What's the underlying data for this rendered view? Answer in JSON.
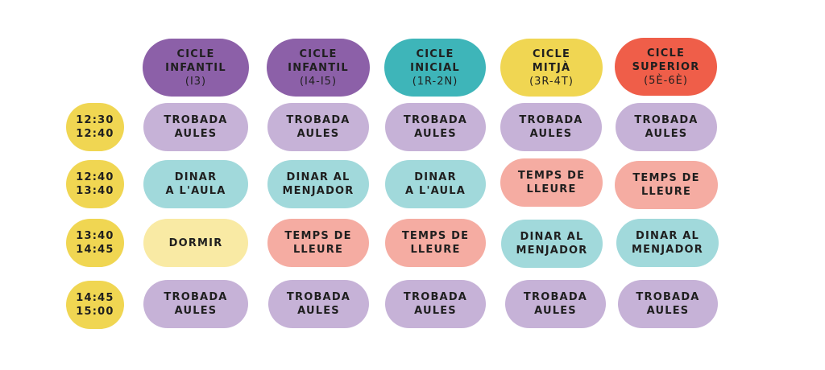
{
  "headers": [
    {
      "line1": "CICLE",
      "line2": "INFANTIL",
      "sub": "(I3)",
      "color": "#8c60a8"
    },
    {
      "line1": "CICLE",
      "line2": "INFANTIL",
      "sub": "(I4-I5)",
      "color": "#8c60a8"
    },
    {
      "line1": "CICLE",
      "line2": "INICIAL",
      "sub": "(1R-2N)",
      "color": "#3eb5b9"
    },
    {
      "line1": "CICLE",
      "line2": "MITJÀ",
      "sub": "(3R-4T)",
      "color": "#f0d652"
    },
    {
      "line1": "CICLE",
      "line2": "SUPERIOR",
      "sub": "(5È-6È)",
      "color": "#ef5e49"
    }
  ],
  "rows": [
    {
      "time": {
        "start": "12:30",
        "end": "12:40"
      },
      "cells": [
        {
          "line1": "TROBADA",
          "line2": "AULES"
        },
        {
          "line1": "TROBADA",
          "line2": "AULES"
        },
        {
          "line1": "TROBADA",
          "line2": "AULES"
        },
        {
          "line1": "TROBADA",
          "line2": "AULES"
        },
        {
          "line1": "TROBADA",
          "line2": "AULES"
        }
      ]
    },
    {
      "time": {
        "start": "12:40",
        "end": "13:40"
      },
      "cells": [
        {
          "line1": "DINAR",
          "line2": "A L'AULA"
        },
        {
          "line1": "DINAR AL",
          "line2": "MENJADOR"
        },
        {
          "line1": "DINAR",
          "line2": "A L'AULA"
        },
        {
          "line1": "TEMPS DE",
          "line2": "LLEURE"
        },
        {
          "line1": "TEMPS DE",
          "line2": "LLEURE"
        }
      ]
    },
    {
      "time": {
        "start": "13:40",
        "end": "14:45"
      },
      "cells": [
        {
          "line1": "DORMIR",
          "line2": ""
        },
        {
          "line1": "TEMPS DE",
          "line2": "LLEURE"
        },
        {
          "line1": "TEMPS DE",
          "line2": "LLEURE"
        },
        {
          "line1": "DINAR AL",
          "line2": "MENJADOR"
        },
        {
          "line1": "DINAR AL",
          "line2": "MENJADOR"
        }
      ]
    },
    {
      "time": {
        "start": "14:45",
        "end": "15:00"
      },
      "cells": [
        {
          "line1": "TROBADA",
          "line2": "AULES"
        },
        {
          "line1": "TROBADA",
          "line2": "AULES"
        },
        {
          "line1": "TROBADA",
          "line2": "AULES"
        },
        {
          "line1": "TROBADA",
          "line2": "AULES"
        },
        {
          "line1": "TROBADA",
          "line2": "AULES"
        }
      ]
    }
  ],
  "colors": {
    "time_badge": "#f0d652",
    "trobada": "#c6b2d7",
    "dinar": "#a1d9db",
    "lleure": "#f5aca2",
    "dormir": "#f9eaa4"
  }
}
